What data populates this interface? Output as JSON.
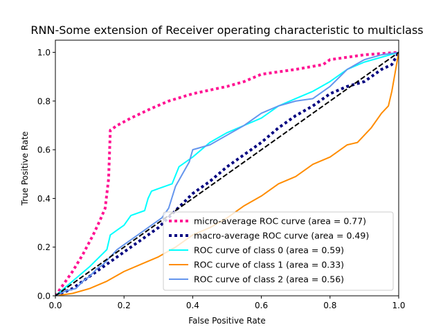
{
  "chart_data": {
    "type": "line",
    "title": "RNN-Some extension of Receiver operating characteristic to multiclass",
    "xlabel": "False Positive Rate",
    "ylabel": "True Positive Rate",
    "xlim": [
      0.0,
      1.0
    ],
    "ylim": [
      0.0,
      1.05
    ],
    "xticks": [
      "0.0",
      "0.2",
      "0.4",
      "0.6",
      "0.8",
      "1.0"
    ],
    "yticks": [
      "0.0",
      "0.2",
      "0.4",
      "0.6",
      "0.8",
      "1.0"
    ],
    "grid": false,
    "legend_position": "lower-right",
    "diagonal_reference": {
      "x": [
        0,
        1
      ],
      "y": [
        0,
        1
      ],
      "color": "#000000",
      "style": "dashed"
    },
    "series": [
      {
        "name": "micro-average ROC curve (area = 0.77)",
        "color": "#ff1493",
        "style": "dotted",
        "width": 4,
        "x": [
          0,
          0.02,
          0.05,
          0.08,
          0.11,
          0.13,
          0.145,
          0.155,
          0.16,
          0.18,
          0.22,
          0.28,
          0.33,
          0.4,
          0.5,
          0.55,
          0.6,
          0.7,
          0.78,
          0.8,
          0.85,
          0.9,
          1.0
        ],
        "y": [
          0,
          0.04,
          0.1,
          0.17,
          0.25,
          0.31,
          0.36,
          0.48,
          0.68,
          0.7,
          0.73,
          0.77,
          0.8,
          0.83,
          0.86,
          0.88,
          0.91,
          0.93,
          0.95,
          0.97,
          0.98,
          0.99,
          1.0
        ]
      },
      {
        "name": "macro-average ROC curve (area = 0.49)",
        "color": "#000080",
        "style": "dotted",
        "width": 4,
        "x": [
          0,
          0.05,
          0.1,
          0.15,
          0.2,
          0.25,
          0.3,
          0.35,
          0.4,
          0.45,
          0.5,
          0.55,
          0.6,
          0.65,
          0.7,
          0.75,
          0.8,
          0.85,
          0.9,
          0.95,
          0.98,
          1.0
        ],
        "y": [
          0,
          0.03,
          0.08,
          0.13,
          0.18,
          0.23,
          0.28,
          0.35,
          0.42,
          0.47,
          0.53,
          0.58,
          0.63,
          0.69,
          0.74,
          0.78,
          0.83,
          0.86,
          0.88,
          0.93,
          0.95,
          1.0
        ]
      },
      {
        "name": "ROC curve of class 0 (area = 0.59)",
        "color": "#00ffff",
        "style": "solid",
        "width": 2,
        "x": [
          0,
          0.05,
          0.1,
          0.15,
          0.16,
          0.18,
          0.2,
          0.22,
          0.26,
          0.27,
          0.28,
          0.3,
          0.32,
          0.34,
          0.36,
          0.4,
          0.45,
          0.5,
          0.55,
          0.6,
          0.65,
          0.7,
          0.75,
          0.8,
          0.85,
          0.9,
          1.0
        ],
        "y": [
          0,
          0.06,
          0.12,
          0.19,
          0.25,
          0.27,
          0.29,
          0.33,
          0.35,
          0.4,
          0.43,
          0.44,
          0.45,
          0.46,
          0.53,
          0.57,
          0.63,
          0.67,
          0.7,
          0.73,
          0.78,
          0.81,
          0.84,
          0.88,
          0.93,
          0.96,
          1.0
        ]
      },
      {
        "name": "ROC curve of class 1 (area = 0.33)",
        "color": "#ff8c00",
        "style": "solid",
        "width": 2,
        "x": [
          0,
          0.05,
          0.1,
          0.15,
          0.2,
          0.25,
          0.3,
          0.35,
          0.4,
          0.45,
          0.5,
          0.55,
          0.6,
          0.65,
          0.7,
          0.75,
          0.8,
          0.82,
          0.85,
          0.88,
          0.9,
          0.92,
          0.95,
          0.97,
          0.98,
          1.0
        ],
        "y": [
          0,
          0.01,
          0.03,
          0.06,
          0.1,
          0.13,
          0.16,
          0.2,
          0.25,
          0.28,
          0.32,
          0.37,
          0.41,
          0.46,
          0.49,
          0.54,
          0.57,
          0.59,
          0.62,
          0.63,
          0.66,
          0.69,
          0.75,
          0.78,
          0.84,
          1.0
        ]
      },
      {
        "name": "ROC curve of class 2 (area = 0.56)",
        "color": "#6495ed",
        "style": "solid",
        "width": 2,
        "x": [
          0,
          0.03,
          0.06,
          0.08,
          0.1,
          0.12,
          0.14,
          0.16,
          0.18,
          0.2,
          0.24,
          0.28,
          0.31,
          0.33,
          0.35,
          0.37,
          0.39,
          0.4,
          0.45,
          0.5,
          0.55,
          0.6,
          0.65,
          0.7,
          0.75,
          0.8,
          0.85,
          0.9,
          0.95,
          1.0
        ],
        "y": [
          0,
          0.02,
          0.03,
          0.06,
          0.08,
          0.11,
          0.13,
          0.16,
          0.19,
          0.21,
          0.25,
          0.29,
          0.32,
          0.36,
          0.45,
          0.5,
          0.55,
          0.6,
          0.62,
          0.66,
          0.7,
          0.75,
          0.78,
          0.8,
          0.81,
          0.86,
          0.93,
          0.97,
          0.99,
          1.0
        ]
      }
    ]
  }
}
